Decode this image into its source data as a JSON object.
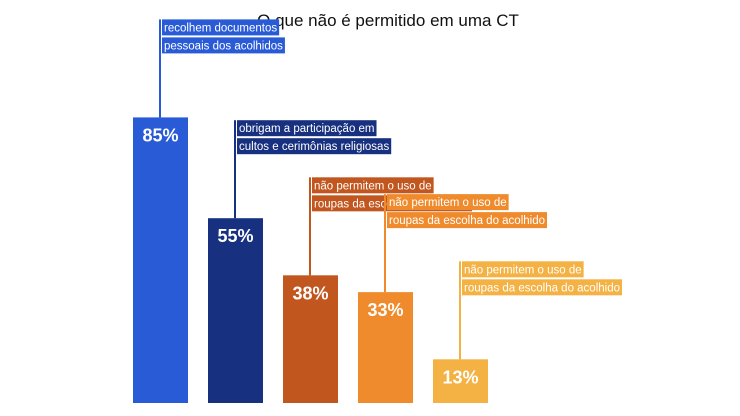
{
  "chart_data": {
    "type": "bar",
    "title": "O que não é permitido em uma CT",
    "categories": [
      "recolhem documentos pessoais dos acolhidos",
      "obrigam a participação em cultos e cerimônias religiosas",
      "não permitem o uso de roupas da escolha do acolhido",
      "não permitem o uso de roupas da escolha do acolhido",
      "não permitem o uso de roupas da escolha do acolhido"
    ],
    "values": [
      85,
      55,
      38,
      33,
      13
    ],
    "value_labels": [
      "85%",
      "55%",
      "38%",
      "33%",
      "13%"
    ],
    "annotations": [
      [
        "recolhem documentos",
        "pessoais dos acolhidos"
      ],
      [
        "obrigam a participação em",
        "cultos e cerimônias religiosas"
      ],
      [
        "não permitem o uso de",
        "roupas da escolha do acolhido"
      ],
      [
        "não permitem o uso de",
        "roupas da escolha do acolhido"
      ],
      [
        "não permitem o uso de",
        "roupas da escolha do acolhido"
      ]
    ],
    "colors": [
      "#2a5bd7",
      "#17307f",
      "#c1561f",
      "#ef8b2c",
      "#f4b244"
    ],
    "ylim": [
      0,
      100
    ],
    "xlabel": "",
    "ylabel": "",
    "grid": false,
    "legend": "none"
  }
}
